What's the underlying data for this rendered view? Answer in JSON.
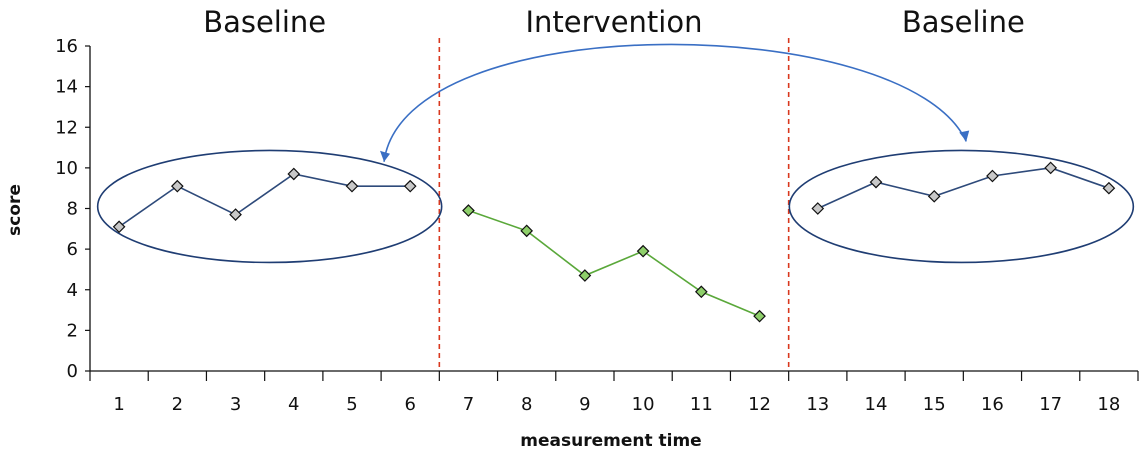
{
  "chart_data": {
    "type": "line",
    "xlabel": "measurement time",
    "ylabel": "score",
    "ylim": [
      0,
      16
    ],
    "yticks": [
      "0",
      "2",
      "4",
      "6",
      "8",
      "10",
      "12",
      "14",
      "16"
    ],
    "x": [
      1,
      2,
      3,
      4,
      5,
      6,
      7,
      8,
      9,
      10,
      11,
      12,
      13,
      14,
      15,
      16,
      17,
      18
    ],
    "xtick_labels": [
      "1",
      "2",
      "3",
      "4",
      "5",
      "6",
      "7",
      "8",
      "9",
      "10",
      "11",
      "12",
      "13",
      "14",
      "15",
      "16",
      "17",
      "18"
    ],
    "phases": [
      {
        "label": "Baseline",
        "range": [
          1,
          6
        ]
      },
      {
        "label": "Intervention",
        "range": [
          7,
          12
        ]
      },
      {
        "label": "Baseline",
        "range": [
          13,
          18
        ]
      }
    ],
    "phase_dividers": [
      6.5,
      12.5
    ],
    "series": [
      {
        "x": [
          1,
          2,
          3,
          4,
          5,
          6
        ],
        "values": [
          7.1,
          9.1,
          7.7,
          9.7,
          9.1,
          9.1
        ],
        "color": "#2e4a7a",
        "marker_fill": "#c8c8c8"
      },
      {
        "x": [
          7,
          8,
          9,
          10,
          11,
          12
        ],
        "values": [
          7.9,
          6.9,
          4.7,
          5.9,
          3.9,
          2.7
        ],
        "color": "#5aa83a",
        "marker_fill": "#8ecf6a"
      },
      {
        "x": [
          13,
          14,
          15,
          16,
          17,
          18
        ],
        "values": [
          8.0,
          9.3,
          8.6,
          9.6,
          10.0,
          9.0
        ],
        "color": "#2e4a7a",
        "marker_fill": "#c8c8c8"
      }
    ],
    "annotations": {
      "ellipses": [
        "first-baseline",
        "second-baseline"
      ],
      "arrow": "bidirectional arrow linking both baseline phases",
      "divider_color": "#d9381e",
      "ellipse_color": "#1f3d73",
      "arrow_color": "#3a6fc4"
    },
    "grid": false
  }
}
